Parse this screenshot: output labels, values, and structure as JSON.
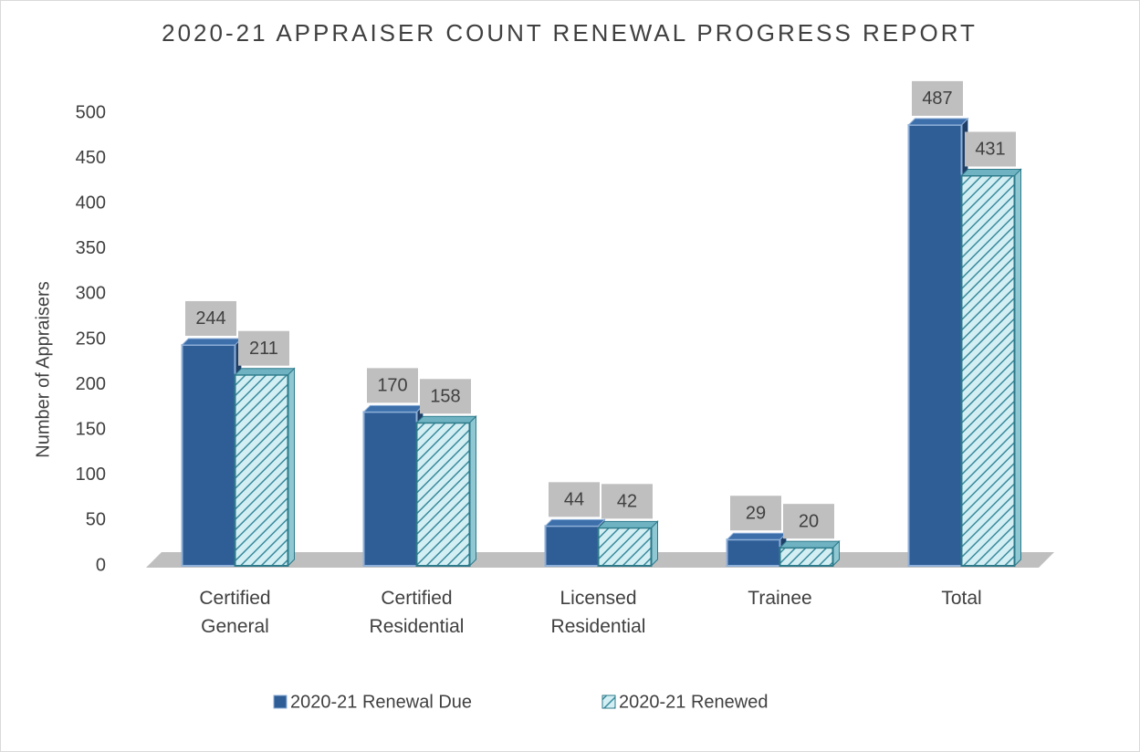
{
  "chart_data": {
    "type": "bar",
    "title": "2020-21 APPRAISER COUNT RENEWAL PROGRESS REPORT",
    "y_label": "Number of Appraisers",
    "categories": [
      "Certified General",
      "Certified Residential",
      "Licensed Residential",
      "Trainee",
      "Total"
    ],
    "series": [
      {
        "name": "2020-21 Renewal Due",
        "color": "#2f5e97",
        "values": [
          244,
          170,
          44,
          29,
          487
        ]
      },
      {
        "name": "2020-21 Renewed",
        "color": "#d3eff4",
        "values": [
          211,
          158,
          42,
          20,
          431
        ]
      }
    ],
    "ylim": [
      0,
      500
    ],
    "yticks": [
      0,
      50,
      100,
      150,
      200,
      250,
      300,
      350,
      400,
      450,
      500
    ],
    "grid": false,
    "legend": "bottom"
  }
}
